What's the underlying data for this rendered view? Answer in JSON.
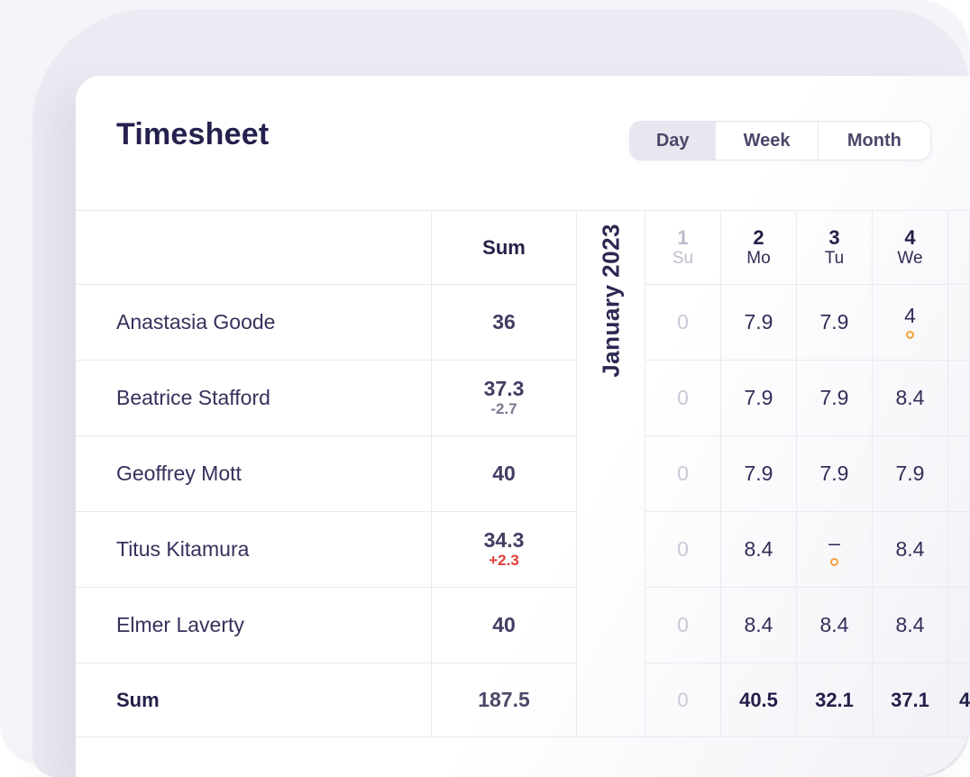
{
  "header": {
    "title": "Timesheet",
    "view_toggle": {
      "options": [
        "Day",
        "Week",
        "Month"
      ],
      "selected": "Day"
    }
  },
  "table": {
    "sum_header": "Sum",
    "month_label": "January 2023",
    "days": [
      {
        "num": "1",
        "dow": "Su",
        "weekend": true
      },
      {
        "num": "2",
        "dow": "Mo",
        "weekend": false
      },
      {
        "num": "3",
        "dow": "Tu",
        "weekend": false
      },
      {
        "num": "4",
        "dow": "We",
        "weekend": false
      },
      {
        "num": "",
        "dow": "",
        "weekend": false
      }
    ],
    "rows": [
      {
        "name": "Anastasia Goode",
        "sum": "36",
        "diff": "",
        "diff_type": "",
        "cells": [
          {
            "v": "0",
            "muted": true
          },
          {
            "v": "7.9"
          },
          {
            "v": "7.9"
          },
          {
            "v": "4",
            "flag": true
          },
          {
            "v": ""
          }
        ]
      },
      {
        "name": "Beatrice Stafford",
        "sum": "37.3",
        "diff": "-2.7",
        "diff_type": "neg",
        "cells": [
          {
            "v": "0",
            "muted": true
          },
          {
            "v": "7.9"
          },
          {
            "v": "7.9"
          },
          {
            "v": "8.4"
          },
          {
            "v": ""
          }
        ]
      },
      {
        "name": "Geoffrey Mott",
        "sum": "40",
        "diff": "",
        "diff_type": "",
        "cells": [
          {
            "v": "0",
            "muted": true
          },
          {
            "v": "7.9"
          },
          {
            "v": "7.9"
          },
          {
            "v": "7.9"
          },
          {
            "v": ""
          }
        ]
      },
      {
        "name": "Titus Kitamura",
        "sum": "34.3",
        "diff": "+2.3",
        "diff_type": "pos",
        "cells": [
          {
            "v": "0",
            "muted": true
          },
          {
            "v": "8.4"
          },
          {
            "v": "–",
            "flag": true
          },
          {
            "v": "8.4"
          },
          {
            "v": ""
          }
        ]
      },
      {
        "name": "Elmer Laverty",
        "sum": "40",
        "diff": "",
        "diff_type": "",
        "cells": [
          {
            "v": "0",
            "muted": true
          },
          {
            "v": "8.4"
          },
          {
            "v": "8.4"
          },
          {
            "v": "8.4"
          },
          {
            "v": ""
          }
        ]
      }
    ],
    "footer": {
      "label": "Sum",
      "sum": "187.5",
      "cells": [
        {
          "v": "0",
          "muted": true
        },
        {
          "v": "40.5"
        },
        {
          "v": "32.1"
        },
        {
          "v": "37.1"
        },
        {
          "v": "4",
          "clip": true
        }
      ]
    }
  },
  "colors": {
    "title_navy": "#24214E",
    "text_navy": "#312E58",
    "muted_gray": "#C9C8D6",
    "weekend_gray": "#BCBBCE",
    "diff_negative": "#7A7890",
    "diff_positive": "#E23C3C",
    "flag_orange": "#F0A33C",
    "border": "#EAE9F1",
    "panel_lavender": "#ECEBF3",
    "sheet_gray": "#F5F5F9",
    "card_white": "#FFFFFF",
    "toggle_active_bg": "#E8E7EF"
  }
}
